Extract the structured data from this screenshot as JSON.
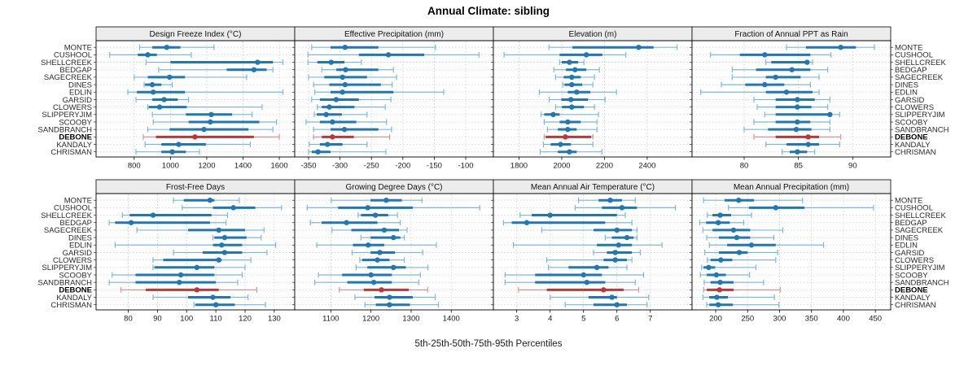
{
  "colors": {
    "normal": "#1f77b4",
    "normal_light": "#7db8dc",
    "highlight": "#c03434",
    "highlight_light": "#dc9595",
    "strip_bg": "#ececec",
    "grid": "#cccccc",
    "row_guide": "#d6d6d6",
    "tick_text": "#1a1a1a",
    "label_text": "#2b2b2b"
  },
  "chart_data": {
    "type": "scatter",
    "variant": "trellis percentile interval dot plot (whisker 5-95, bar 25-75, dot median)",
    "title": "Annual Climate: sibling",
    "caption": "5th-25th-50th-75th-95th Percentiles",
    "grid": true,
    "legend": "none",
    "rows": 2,
    "cols": 4,
    "percentiles": [
      5,
      25,
      50,
      75,
      95
    ],
    "highlight_station": "DEBONE",
    "stations": [
      "MONTE",
      "CUSHOOL",
      "SHELLCREEK",
      "BEDGAP",
      "SAGECREEK",
      "DINES",
      "EDLIN",
      "GARSID",
      "CLOWERS",
      "SLIPPERYJIM",
      "SCOOBY",
      "SANDBRANCH",
      "DEBONE",
      "KANDALY",
      "CHRISMAN"
    ],
    "panels": [
      {
        "title": "Design Freeze Index (°C)",
        "xlim": [
          590,
          1685
        ],
        "ticks": [
          800,
          1000,
          1200,
          1400,
          1600
        ],
        "values": [
          [
            830,
            900,
            980,
            1055,
            1240
          ],
          [
            665,
            820,
            875,
            925,
            1115
          ],
          [
            865,
            1000,
            1480,
            1565,
            1620
          ],
          [
            935,
            1310,
            1460,
            1530,
            1565
          ],
          [
            800,
            875,
            995,
            1080,
            1420
          ],
          [
            855,
            860,
            900,
            950,
            1010
          ],
          [
            765,
            815,
            905,
            1080,
            1620
          ],
          [
            810,
            900,
            965,
            1040,
            1100
          ],
          [
            875,
            880,
            940,
            1090,
            1505
          ],
          [
            900,
            1085,
            1225,
            1340,
            1450
          ],
          [
            905,
            1100,
            1220,
            1490,
            1585
          ],
          [
            875,
            995,
            1185,
            1430,
            1565
          ],
          [
            850,
            920,
            1135,
            1460,
            1600
          ],
          [
            860,
            950,
            1045,
            1195,
            1440
          ],
          [
            810,
            950,
            1010,
            1085,
            1160
          ]
        ]
      },
      {
        "title": "Effective Precipitation (mm)",
        "xlim": [
          -372,
          -56
        ],
        "ticks": [
          -350,
          -300,
          -250,
          -200,
          -150,
          -100
        ],
        "values": [
          [
            -345,
            -315,
            -292,
            -239,
            -148
          ],
          [
            -351,
            -270,
            -223,
            -166,
            -79
          ],
          [
            -351,
            -336,
            -314,
            -293,
            -266
          ],
          [
            -329,
            -306,
            -291,
            -239,
            -215
          ],
          [
            -350,
            -325,
            -296,
            -257,
            -210
          ],
          [
            -342,
            -317,
            -292,
            -235,
            -217
          ],
          [
            -340,
            -315,
            -296,
            -215,
            -135
          ],
          [
            -345,
            -332,
            -306,
            -270,
            -219
          ],
          [
            -336,
            -329,
            -317,
            -277,
            -228
          ],
          [
            -341,
            -337,
            -322,
            -297,
            -257
          ],
          [
            -354,
            -332,
            -312,
            -274,
            -226
          ],
          [
            -342,
            -315,
            -293,
            -239,
            -218
          ],
          [
            -342,
            -329,
            -312,
            -278,
            -221
          ],
          [
            -349,
            -332,
            -320,
            -296,
            -257
          ],
          [
            -350,
            -345,
            -335,
            -315,
            -227
          ]
        ]
      },
      {
        "title": "Elevation (m)",
        "xlim": [
          1680,
          2610
        ],
        "ticks": [
          1800,
          2000,
          2200,
          2400
        ],
        "values": [
          [
            1940,
            2050,
            2360,
            2430,
            2540
          ],
          [
            1730,
            1990,
            2115,
            2190,
            2300
          ],
          [
            1990,
            2000,
            2036,
            2077,
            2104
          ],
          [
            1963,
            2020,
            2062,
            2115,
            2176
          ],
          [
            1971,
            2009,
            2047,
            2089,
            2153
          ],
          [
            2005,
            2013,
            2047,
            2096,
            2146
          ],
          [
            1895,
            2028,
            2070,
            2134,
            2256
          ],
          [
            1941,
            1998,
            2043,
            2123,
            2203
          ],
          [
            1971,
            2001,
            2047,
            2104,
            2153
          ],
          [
            1903,
            1918,
            1960,
            1990,
            2172
          ],
          [
            1918,
            1990,
            2028,
            2089,
            2165
          ],
          [
            1933,
            1982,
            2028,
            2070,
            2165
          ],
          [
            1918,
            1925,
            2017,
            2138,
            2146
          ],
          [
            1914,
            1948,
            1994,
            2043,
            2146
          ],
          [
            1899,
            1982,
            2036,
            2070,
            2188
          ]
        ]
      },
      {
        "title": "Fraction of Annual PPT as Rain",
        "xlim": [
          75.2,
          93.5
        ],
        "ticks": [
          80,
          85,
          90
        ],
        "values": [
          [
            83.9,
            85.7,
            88.9,
            90.3,
            92.0
          ],
          [
            76.9,
            79.6,
            81.9,
            86.1,
            88.0
          ],
          [
            82.0,
            82.5,
            85.8,
            86.0,
            86.3
          ],
          [
            78.9,
            81.1,
            84.4,
            86.1,
            87.7
          ],
          [
            78.9,
            82.0,
            82.9,
            85.2,
            86.9
          ],
          [
            77.9,
            80.1,
            81.9,
            83.7,
            86.1
          ],
          [
            76.0,
            82.0,
            83.9,
            86.3,
            86.9
          ],
          [
            80.9,
            82.9,
            84.9,
            86.5,
            87.9
          ],
          [
            81.2,
            82.9,
            84.9,
            86.2,
            87.7
          ],
          [
            81.9,
            82.9,
            87.9,
            88.1,
            88.8
          ],
          [
            80.9,
            82.9,
            84.9,
            86.1,
            87.9
          ],
          [
            80.0,
            82.2,
            84.8,
            86.2,
            87.9
          ],
          [
            80.9,
            82.9,
            85.9,
            86.9,
            88.9
          ],
          [
            82.0,
            83.9,
            85.9,
            86.9,
            88.8
          ],
          [
            83.5,
            84.2,
            84.9,
            85.8,
            86.5
          ]
        ]
      },
      {
        "title": "Frost-Free Days",
        "xlim": [
          69,
          137
        ],
        "ticks": [
          80,
          90,
          100,
          110,
          120,
          130
        ],
        "values": [
          [
            95.5,
            99,
            108,
            109.5,
            118
          ],
          [
            98.5,
            109,
            116,
            123.5,
            132.5
          ],
          [
            78,
            80.5,
            88.5,
            108.5,
            114
          ],
          [
            73.5,
            75.5,
            81,
            108,
            113.5
          ],
          [
            83,
            100.5,
            111,
            120,
            126.5
          ],
          [
            109,
            109.5,
            113,
            120.5,
            125.5
          ],
          [
            75.5,
            109,
            112,
            119,
            130.5
          ],
          [
            95.5,
            105.5,
            113,
            119,
            127.5
          ],
          [
            88.5,
            92,
            111,
            112,
            122
          ],
          [
            88.5,
            89,
            103.5,
            109.5,
            120
          ],
          [
            74.5,
            82.5,
            98,
            109.5,
            119
          ],
          [
            73.5,
            82.5,
            97.5,
            110,
            117.5
          ],
          [
            77.5,
            86,
            103.5,
            111,
            124
          ],
          [
            88.5,
            100.5,
            109,
            115,
            121
          ],
          [
            102.5,
            103,
            110,
            116.5,
            127
          ]
        ]
      },
      {
        "title": "Growing Degree Days (°C)",
        "xlim": [
          1010,
          1505
        ],
        "ticks": [
          1100,
          1200,
          1300,
          1400
        ],
        "values": [
          [
            1101,
            1199,
            1238,
            1277,
            1327
          ],
          [
            1041,
            1118,
            1192,
            1304,
            1471
          ],
          [
            1168,
            1175,
            1211,
            1243,
            1266
          ],
          [
            1049,
            1077,
            1139,
            1216,
            1273
          ],
          [
            1103,
            1151,
            1233,
            1270,
            1290
          ],
          [
            1175,
            1199,
            1256,
            1273,
            1283
          ],
          [
            1065,
            1155,
            1193,
            1233,
            1363
          ],
          [
            1153,
            1199,
            1222,
            1260,
            1329
          ],
          [
            1172,
            1178,
            1216,
            1246,
            1283
          ],
          [
            1163,
            1191,
            1256,
            1287,
            1342
          ],
          [
            1069,
            1128,
            1200,
            1252,
            1323
          ],
          [
            1060,
            1141,
            1207,
            1252,
            1319
          ],
          [
            1121,
            1182,
            1226,
            1294,
            1341
          ],
          [
            1160,
            1209,
            1246,
            1304,
            1360
          ],
          [
            1185,
            1212,
            1246,
            1297,
            1368
          ]
        ]
      },
      {
        "title": "Mean Annual Air Temperature (°C)",
        "xlim": [
          2.3,
          8.25
        ],
        "ticks": [
          3,
          4,
          5,
          6,
          7
        ],
        "values": [
          [
            4.85,
            5.45,
            5.8,
            6.15,
            6.55
          ],
          [
            4.75,
            5.55,
            6.15,
            6.6,
            7.75
          ],
          [
            3.1,
            3.45,
            4.0,
            6.0,
            6.25
          ],
          [
            2.6,
            2.85,
            3.3,
            5.65,
            6.45
          ],
          [
            3.75,
            5.3,
            6.0,
            6.45,
            6.6
          ],
          [
            5.65,
            5.85,
            6.3,
            6.5,
            6.6
          ],
          [
            2.9,
            5.4,
            6.05,
            6.45,
            7.35
          ],
          [
            5.3,
            5.7,
            5.95,
            6.45,
            6.7
          ],
          [
            3.9,
            5.6,
            5.95,
            6.3,
            6.45
          ],
          [
            3.95,
            4.55,
            5.4,
            5.75,
            6.3
          ],
          [
            2.65,
            3.55,
            5.0,
            5.55,
            6.8
          ],
          [
            2.65,
            3.55,
            5.1,
            5.65,
            6.55
          ],
          [
            3.05,
            3.9,
            5.6,
            6.2,
            6.65
          ],
          [
            4.0,
            5.15,
            5.85,
            6.0,
            6.95
          ],
          [
            4.45,
            5.3,
            6.0,
            6.3,
            6.9
          ]
        ]
      },
      {
        "title": "Mean Annual Precipitation (mm)",
        "xlim": [
          163,
          474
        ],
        "ticks": [
          200,
          250,
          300,
          350,
          400,
          450
        ],
        "values": [
          [
            181,
            214,
            236,
            260,
            336
          ],
          [
            220,
            252,
            294,
            339,
            447
          ],
          [
            187,
            195,
            207,
            224,
            256
          ],
          [
            175,
            185,
            204,
            222,
            244
          ],
          [
            180,
            195,
            228,
            254,
            305
          ],
          [
            186,
            205,
            233,
            254,
            291
          ],
          [
            190,
            218,
            256,
            294,
            369
          ],
          [
            183,
            205,
            237,
            250,
            297
          ],
          [
            187,
            192,
            208,
            226,
            294
          ],
          [
            178,
            181,
            189,
            199,
            263
          ],
          [
            176,
            186,
            201,
            216,
            253
          ],
          [
            182,
            192,
            207,
            228,
            275
          ],
          [
            181,
            186,
            206,
            228,
            301
          ],
          [
            180,
            190,
            202,
            219,
            292
          ],
          [
            186,
            190,
            204,
            227,
            299
          ]
        ]
      }
    ]
  }
}
